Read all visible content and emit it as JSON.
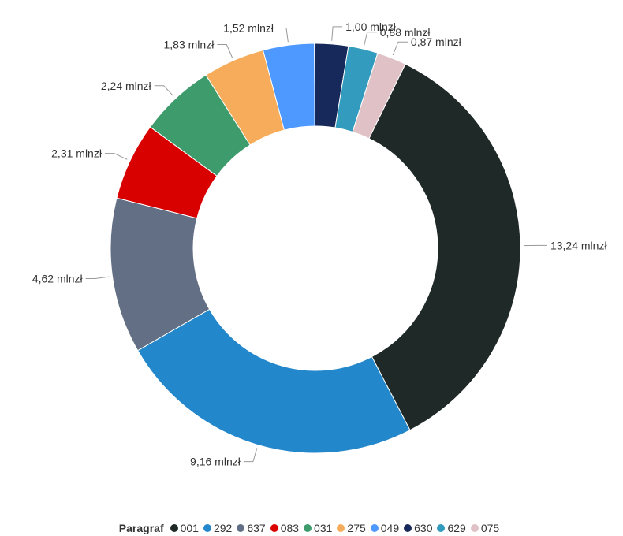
{
  "chart_data": {
    "type": "pie",
    "variant": "donut",
    "unit_suffix": " mlnzł",
    "legend": {
      "title": "Paragraf",
      "placement": "bottom-center"
    },
    "slices": [
      {
        "category": "001",
        "value": 13.24,
        "label": "13,24 mlnzł",
        "color": "#1f2a28"
      },
      {
        "category": "292",
        "value": 9.16,
        "label": "9,16 mlnzł",
        "color": "#2387cc"
      },
      {
        "category": "637",
        "value": 4.62,
        "label": "4,62 mlnzł",
        "color": "#636f85"
      },
      {
        "category": "083",
        "value": 2.31,
        "label": "2,31 mlnzł",
        "color": "#d90000"
      },
      {
        "category": "031",
        "value": 2.24,
        "label": "2,24 mlnzł",
        "color": "#3d9b6c"
      },
      {
        "category": "275",
        "value": 1.83,
        "label": "1,83 mlnzł",
        "color": "#f6ac5a"
      },
      {
        "category": "049",
        "value": 1.52,
        "label": "1,52 mlnzł",
        "color": "#4d99ff"
      },
      {
        "category": "630",
        "value": 1.0,
        "label": "1,00 mlnzł",
        "color": "#17295a"
      },
      {
        "category": "629",
        "value": 0.88,
        "label": "0,88 mlnzł",
        "color": "#339bbd"
      },
      {
        "category": "075",
        "value": 0.87,
        "label": "0,87 mlnzł",
        "color": "#e0c2c6"
      }
    ]
  }
}
